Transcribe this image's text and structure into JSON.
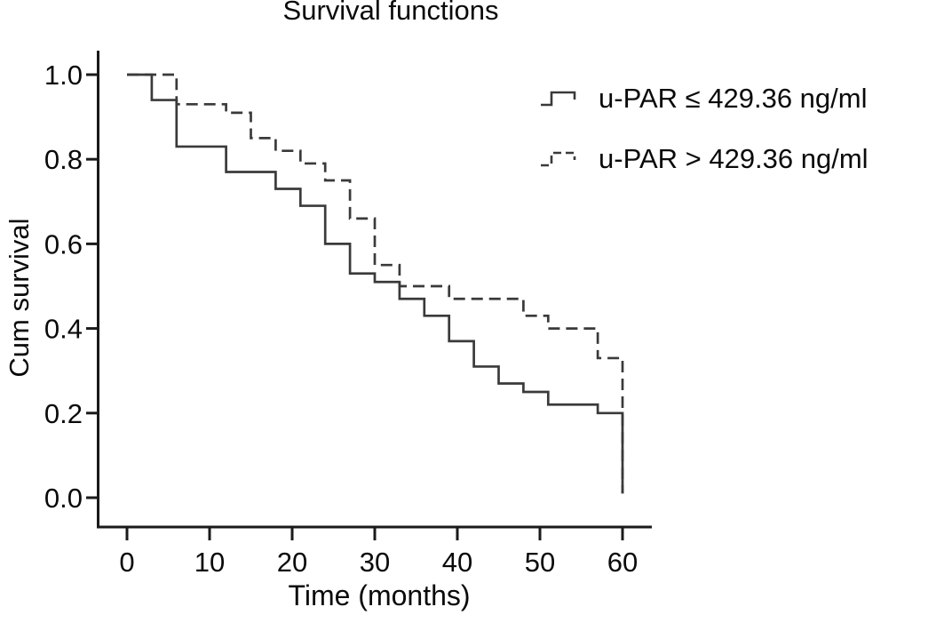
{
  "title": "Survival functions",
  "axes": {
    "x": {
      "label": "Time (months)"
    },
    "y": {
      "label": "Cum survival"
    }
  },
  "legend": [
    {
      "label": "u-PAR ≤ 429.36 ng/ml",
      "style": "solid"
    },
    {
      "label": "u-PAR > 429.36 ng/ml",
      "style": "dashed"
    }
  ],
  "colors": {
    "curve": "#3a3a3a",
    "axis": "#1a1a1a",
    "text": "#0a0a0a",
    "background": "#ffffff"
  },
  "chart_data": {
    "type": "line",
    "subtype": "kaplan-meier-step",
    "title": "Survival functions",
    "xlabel": "Time (months)",
    "ylabel": "Cum survival",
    "xlim": [
      0,
      63.5
    ],
    "ylim": [
      0,
      1.05
    ],
    "x_ticks": [
      0,
      10,
      20,
      30,
      40,
      50,
      60
    ],
    "y_tick_labels": [
      "0.0",
      "0.2",
      "0.4",
      "0.6",
      "0.8",
      "1.0"
    ],
    "grid": false,
    "legend_position": "upper right",
    "series": [
      {
        "name": "u-PAR ≤ 429.36 ng/ml",
        "line_style": "solid",
        "color": "#3a3a3a",
        "points": [
          [
            0,
            1.0
          ],
          [
            3,
            0.94
          ],
          [
            6,
            0.83
          ],
          [
            12,
            0.77
          ],
          [
            18,
            0.73
          ],
          [
            21,
            0.69
          ],
          [
            24,
            0.6
          ],
          [
            27,
            0.53
          ],
          [
            30,
            0.51
          ],
          [
            33,
            0.47
          ],
          [
            36,
            0.43
          ],
          [
            39,
            0.37
          ],
          [
            42,
            0.31
          ],
          [
            45,
            0.27
          ],
          [
            48,
            0.25
          ],
          [
            51,
            0.22
          ],
          [
            57,
            0.2
          ],
          [
            60,
            0.01
          ]
        ]
      },
      {
        "name": "u-PAR > 429.36 ng/ml",
        "line_style": "dashed",
        "color": "#3a3a3a",
        "points": [
          [
            0,
            1.0
          ],
          [
            6,
            0.93
          ],
          [
            12,
            0.91
          ],
          [
            15,
            0.85
          ],
          [
            18,
            0.82
          ],
          [
            21,
            0.79
          ],
          [
            24,
            0.75
          ],
          [
            27,
            0.66
          ],
          [
            30,
            0.55
          ],
          [
            33,
            0.5
          ],
          [
            39,
            0.47
          ],
          [
            48,
            0.43
          ],
          [
            51,
            0.4
          ],
          [
            57,
            0.33
          ],
          [
            60,
            0.01
          ]
        ]
      }
    ]
  }
}
